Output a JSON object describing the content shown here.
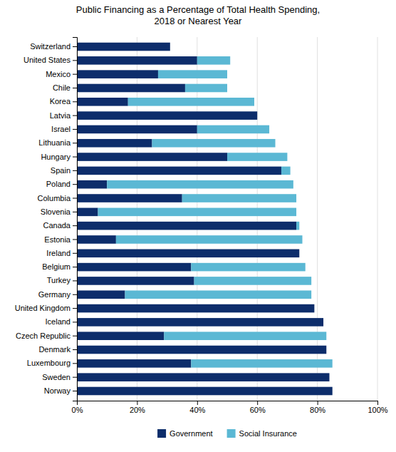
{
  "chart_data": {
    "type": "bar",
    "orientation": "horizontal",
    "stacked": true,
    "title": "Public Financing as a Percentage of Total Health Spending,\n2018 or Nearest Year",
    "categories": [
      "Switzerland",
      "United States",
      "Mexico",
      "Chile",
      "Korea",
      "Latvia",
      "Israel",
      "Lithuania",
      "Hungary",
      "Spain",
      "Poland",
      "Columbia",
      "Slovenia",
      "Canada",
      "Estonia",
      "Ireland",
      "Belgium",
      "Turkey",
      "Germany",
      "United Kingdom",
      "Iceland",
      "Czech Republic",
      "Denmark",
      "Luxembourg",
      "Sweden",
      "Norway"
    ],
    "series": [
      {
        "name": "Government",
        "color": "#0d2d6b",
        "values": [
          31,
          40,
          27,
          36,
          17,
          60,
          40,
          25,
          50,
          68,
          10,
          35,
          7,
          73,
          13,
          74,
          38,
          39,
          16,
          79,
          82,
          29,
          83,
          38,
          84,
          85
        ]
      },
      {
        "name": "Social Insurance",
        "color": "#5bb8d4",
        "values": [
          0,
          11,
          23,
          14,
          42,
          0,
          24,
          41,
          20,
          3,
          62,
          38,
          66,
          1,
          62,
          0,
          38,
          39,
          62,
          0,
          0,
          54,
          0,
          47,
          0,
          0
        ]
      }
    ],
    "xlim": [
      0,
      100
    ],
    "xticks": [
      {
        "value": 0,
        "label": "0%"
      },
      {
        "value": 20,
        "label": "20%"
      },
      {
        "value": 40,
        "label": "40%"
      },
      {
        "value": 60,
        "label": "60%"
      },
      {
        "value": 80,
        "label": "80%"
      },
      {
        "value": 100,
        "label": "100%"
      }
    ],
    "grid": true,
    "legend": "bottom"
  }
}
